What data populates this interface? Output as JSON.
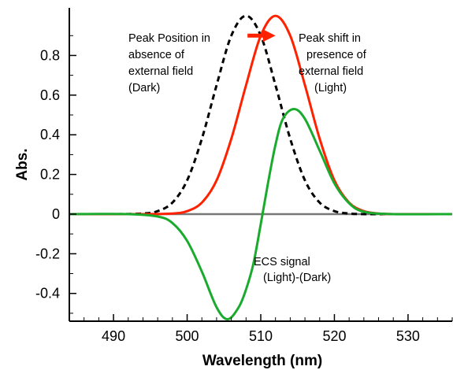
{
  "chart_data": {
    "type": "line",
    "xlabel": "Wavelength (nm)",
    "ylabel": "Abs.",
    "xlim": [
      484,
      536
    ],
    "ylim": [
      -0.54,
      1.04
    ],
    "x_ticks": [
      490,
      500,
      510,
      520,
      530
    ],
    "x_tick_labels": [
      "490",
      "500",
      "510",
      "520",
      "530"
    ],
    "y_ticks": [
      -0.4,
      -0.2,
      0,
      0.2,
      0.4,
      0.6,
      0.8
    ],
    "y_tick_labels": [
      "-0.4",
      "-0.2",
      "0",
      "0.2",
      "0.4",
      "0.6",
      "0.8"
    ],
    "grid": false,
    "series": [
      {
        "color": "#000000",
        "style": "dashed",
        "x": [
          484,
          490,
          494,
          496,
          498,
          500,
          502,
          504,
          506,
          508,
          510,
          512,
          514,
          516,
          518,
          520,
          522,
          524,
          526,
          530,
          536
        ],
        "y": [
          0.0,
          0.0,
          0.003,
          0.015,
          0.058,
          0.17,
          0.38,
          0.65,
          0.9,
          1.0,
          0.9,
          0.65,
          0.38,
          0.17,
          0.058,
          0.015,
          0.003,
          0.0,
          0.0,
          0.0,
          0.0
        ]
      },
      {
        "color": "#ff2200",
        "style": "solid",
        "x": [
          484,
          494,
          498,
          500,
          502,
          504,
          506,
          508,
          510,
          512,
          514,
          516,
          518,
          520,
          522,
          524,
          526,
          528,
          530,
          536
        ],
        "y": [
          0.0,
          0.0,
          0.003,
          0.015,
          0.058,
          0.17,
          0.38,
          0.65,
          0.9,
          1.0,
          0.9,
          0.65,
          0.38,
          0.17,
          0.058,
          0.015,
          0.003,
          0.0,
          0.0,
          0.0
        ]
      },
      {
        "color": "#1aab2e",
        "style": "solid",
        "x": [
          484,
          492,
          496,
          498,
          500,
          502,
          504,
          505.5,
          507,
          508,
          509,
          510,
          511,
          512,
          513,
          514.5,
          516,
          518,
          520,
          522,
          524,
          528,
          536
        ],
        "y": [
          0.0,
          0.0,
          -0.012,
          -0.045,
          -0.135,
          -0.29,
          -0.47,
          -0.53,
          -0.47,
          -0.38,
          -0.25,
          -0.05,
          0.16,
          0.35,
          0.48,
          0.53,
          0.48,
          0.32,
          0.155,
          0.055,
          0.012,
          0.0,
          0.0
        ]
      },
      {
        "color": "#777777",
        "style": "solid",
        "x": [
          484,
          536
        ],
        "y": [
          0,
          0
        ]
      }
    ],
    "annotations": [
      {
        "lines": [
          "Peak Position in",
          "absence of",
          "external field",
          "(Dark)"
        ]
      },
      {
        "lines": [
          "Peak shift in",
          "presence of",
          "external field",
          "(Light)"
        ]
      },
      {
        "lines": [
          "ECS signal",
          "(Light)-(Dark)"
        ]
      }
    ],
    "arrow_color": "#ff2200"
  }
}
